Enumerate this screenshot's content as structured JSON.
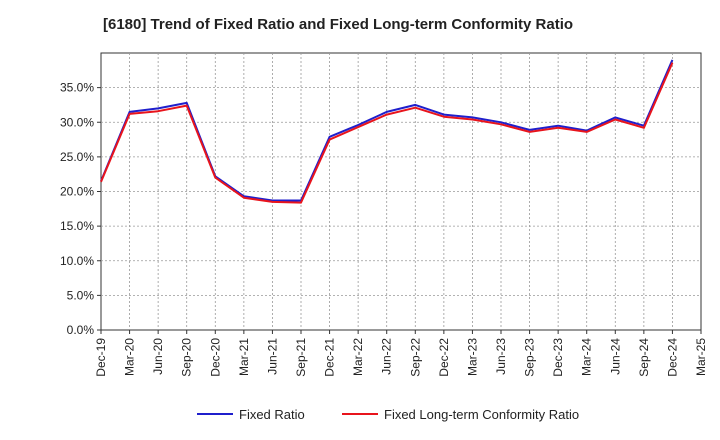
{
  "chart_data": {
    "type": "line",
    "title": "[6180]  Trend of Fixed Ratio and Fixed Long-term Conformity Ratio",
    "xlabel": "",
    "ylabel": "",
    "categories": [
      "Dec-19",
      "Mar-20",
      "Jun-20",
      "Sep-20",
      "Dec-20",
      "Mar-21",
      "Jun-21",
      "Sep-21",
      "Dec-21",
      "Mar-22",
      "Jun-22",
      "Sep-22",
      "Dec-22",
      "Mar-23",
      "Jun-23",
      "Sep-23",
      "Dec-23",
      "Mar-24",
      "Jun-24",
      "Sep-24",
      "Dec-24",
      "Mar-25"
    ],
    "ylim": [
      0,
      40
    ],
    "yticks": [
      0,
      5,
      10,
      15,
      20,
      25,
      30,
      35
    ],
    "ytick_labels": [
      "0.0%",
      "5.0%",
      "10.0%",
      "15.0%",
      "20.0%",
      "25.0%",
      "30.0%",
      "35.0%"
    ],
    "grid": true,
    "legend_position": "bottom",
    "series": [
      {
        "name": "Fixed Ratio",
        "color": "#1f1fcc",
        "values": [
          21.5,
          31.5,
          32.0,
          32.8,
          22.2,
          19.3,
          18.7,
          18.7,
          27.9,
          29.6,
          31.5,
          32.5,
          31.1,
          30.7,
          30.0,
          28.9,
          29.5,
          28.8,
          30.7,
          29.5,
          39.0,
          null
        ]
      },
      {
        "name": "Fixed Long-term Conformity Ratio",
        "color": "#e8141c",
        "values": [
          21.4,
          31.2,
          31.6,
          32.4,
          22.0,
          19.1,
          18.5,
          18.4,
          27.5,
          29.3,
          31.1,
          32.1,
          30.8,
          30.4,
          29.7,
          28.6,
          29.2,
          28.6,
          30.4,
          29.2,
          38.6,
          null
        ]
      }
    ]
  }
}
